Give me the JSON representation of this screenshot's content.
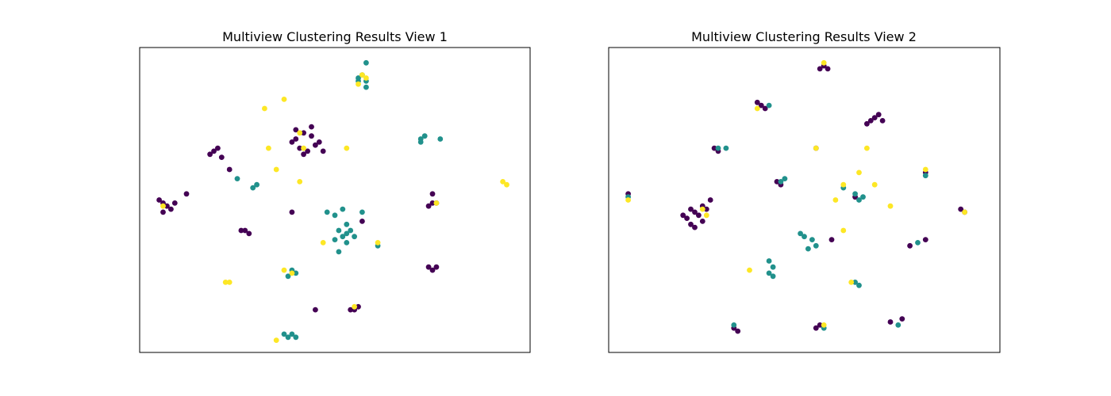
{
  "figure": {
    "background": "#ffffff"
  },
  "colors": {
    "cluster_0": "#440154",
    "cluster_1": "#21918c",
    "cluster_2": "#fde725"
  },
  "chart_data": [
    {
      "type": "scatter",
      "title": "Multiview Clustering Results View 1",
      "xlabel": "",
      "ylabel": "",
      "xlim": [
        0,
        100
      ],
      "ylim": [
        0,
        100
      ],
      "ticks_shown": false,
      "grid": false,
      "legend": "none",
      "series": [
        {
          "color": "#440154",
          "points": [
            [
              40,
              70
            ],
            [
              42,
              72
            ],
            [
              44,
              71
            ],
            [
              45,
              68
            ],
            [
              41,
              67
            ],
            [
              43,
              66
            ],
            [
              46,
              69
            ],
            [
              39,
              69
            ],
            [
              44,
              74
            ],
            [
              42,
              65
            ],
            [
              47,
              66
            ],
            [
              40,
              73
            ],
            [
              19,
              66
            ],
            [
              20,
              67
            ],
            [
              18,
              65
            ],
            [
              21,
              64
            ],
            [
              6,
              49
            ],
            [
              7,
              48
            ],
            [
              8,
              47
            ],
            [
              6,
              46
            ],
            [
              5,
              50
            ],
            [
              9,
              49
            ],
            [
              12,
              52
            ],
            [
              27,
              40
            ],
            [
              28,
              39
            ],
            [
              26,
              40
            ],
            [
              45,
              14
            ],
            [
              55,
              14
            ],
            [
              56,
              15
            ],
            [
              54,
              14
            ],
            [
              75,
              49
            ],
            [
              76,
              49
            ],
            [
              74,
              48
            ],
            [
              75,
              52
            ],
            [
              74,
              28
            ],
            [
              75,
              27
            ],
            [
              76,
              28
            ],
            [
              23,
              60
            ],
            [
              39,
              46
            ],
            [
              57,
              43
            ]
          ]
        },
        {
          "color": "#21918c",
          "points": [
            [
              56,
              90
            ],
            [
              57,
              91
            ],
            [
              58,
              89
            ],
            [
              56,
              89
            ],
            [
              58,
              87
            ],
            [
              58,
              95
            ],
            [
              72,
              70
            ],
            [
              73,
              71
            ],
            [
              72,
              69
            ],
            [
              77,
              70
            ],
            [
              51,
              40
            ],
            [
              53,
              39
            ],
            [
              55,
              38
            ],
            [
              52,
              38
            ],
            [
              54,
              40
            ],
            [
              50,
              37
            ],
            [
              53,
              36
            ],
            [
              53,
              42
            ],
            [
              57,
              46
            ],
            [
              51,
              33
            ],
            [
              39,
              27
            ],
            [
              40,
              26
            ],
            [
              38,
              25
            ],
            [
              38,
              5
            ],
            [
              39,
              6
            ],
            [
              40,
              5
            ],
            [
              37,
              6
            ],
            [
              30,
              55
            ],
            [
              29,
              54
            ],
            [
              25,
              57
            ],
            [
              61,
              35
            ],
            [
              48,
              46
            ],
            [
              50,
              45
            ],
            [
              52,
              47
            ]
          ]
        },
        {
          "color": "#fde725",
          "points": [
            [
              57,
              91
            ],
            [
              56,
              88
            ],
            [
              58,
              90
            ],
            [
              32,
              80
            ],
            [
              37,
              83
            ],
            [
              41,
              72
            ],
            [
              42,
              67
            ],
            [
              33,
              67
            ],
            [
              35,
              60
            ],
            [
              41,
              56
            ],
            [
              53,
              67
            ],
            [
              37,
              27
            ],
            [
              39,
              26
            ],
            [
              23,
              23
            ],
            [
              22,
              23
            ],
            [
              47,
              36
            ],
            [
              61,
              36
            ],
            [
              93,
              56
            ],
            [
              94,
              55
            ],
            [
              6,
              48
            ],
            [
              35,
              4
            ],
            [
              55,
              15
            ],
            [
              76,
              49
            ]
          ]
        }
      ]
    },
    {
      "type": "scatter",
      "title": "Multiview Clustering Results View 2",
      "xlabel": "",
      "ylabel": "",
      "xlim": [
        0,
        100
      ],
      "ylim": [
        0,
        100
      ],
      "ticks_shown": false,
      "grid": false,
      "legend": "none",
      "series": [
        {
          "color": "#440154",
          "points": [
            [
              54,
              93
            ],
            [
              55,
              94
            ],
            [
              56,
              93
            ],
            [
              39,
              81
            ],
            [
              40,
              80
            ],
            [
              38,
              82
            ],
            [
              67,
              76
            ],
            [
              68,
              77
            ],
            [
              66,
              75
            ],
            [
              69,
              78
            ],
            [
              70,
              76
            ],
            [
              27,
              67
            ],
            [
              28,
              66
            ],
            [
              53,
              67
            ],
            [
              43,
              56
            ],
            [
              44,
              55
            ],
            [
              81,
              59
            ],
            [
              21,
              47
            ],
            [
              22,
              46
            ],
            [
              23,
              45
            ],
            [
              24,
              48
            ],
            [
              20,
              44
            ],
            [
              25,
              47
            ],
            [
              21,
              42
            ],
            [
              22,
              41
            ],
            [
              24,
              43
            ],
            [
              19,
              45
            ],
            [
              26,
              50
            ],
            [
              90,
              47
            ],
            [
              91,
              46
            ],
            [
              77,
              35
            ],
            [
              81,
              37
            ],
            [
              32,
              8
            ],
            [
              33,
              7
            ],
            [
              53,
              8
            ],
            [
              54,
              9
            ],
            [
              72,
              10
            ],
            [
              75,
              11
            ],
            [
              5,
              52
            ],
            [
              63,
              51
            ],
            [
              57,
              37
            ]
          ]
        },
        {
          "color": "#21918c",
          "points": [
            [
              41,
              81
            ],
            [
              28,
              67
            ],
            [
              30,
              67
            ],
            [
              44,
              56
            ],
            [
              45,
              57
            ],
            [
              60,
              54
            ],
            [
              63,
              52
            ],
            [
              64,
              50
            ],
            [
              65,
              51
            ],
            [
              50,
              38
            ],
            [
              52,
              37
            ],
            [
              53,
              35
            ],
            [
              51,
              34
            ],
            [
              49,
              39
            ],
            [
              41,
              30
            ],
            [
              42,
              28
            ],
            [
              42,
              25
            ],
            [
              41,
              26
            ],
            [
              63,
              23
            ],
            [
              64,
              22
            ],
            [
              79,
              36
            ],
            [
              74,
              9
            ],
            [
              32,
              9
            ],
            [
              55,
              8
            ],
            [
              81,
              58
            ],
            [
              5,
              51
            ]
          ]
        },
        {
          "color": "#fde725",
          "points": [
            [
              55,
              95
            ],
            [
              38,
              80
            ],
            [
              66,
              67
            ],
            [
              53,
              67
            ],
            [
              64,
              59
            ],
            [
              58,
              50
            ],
            [
              60,
              55
            ],
            [
              68,
              55
            ],
            [
              72,
              48
            ],
            [
              60,
              40
            ],
            [
              36,
              27
            ],
            [
              55,
              9
            ],
            [
              91,
              46
            ],
            [
              25,
              45
            ],
            [
              24,
              47
            ],
            [
              81,
              60
            ],
            [
              5,
              50
            ],
            [
              62,
              23
            ]
          ]
        }
      ]
    }
  ]
}
